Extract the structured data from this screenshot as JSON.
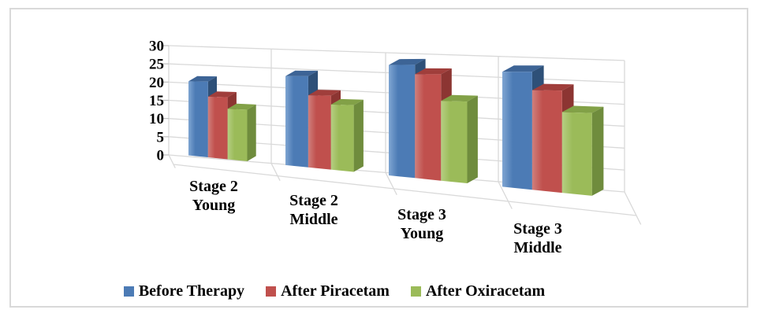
{
  "chart_data": {
    "type": "bar",
    "projection": "3d-clustered-column",
    "title": "",
    "categories": [
      {
        "line1": "Stage 2",
        "line2": "Young"
      },
      {
        "line1": "Stage 2",
        "line2": "Middle"
      },
      {
        "line1": "Stage 3",
        "line2": "Young"
      },
      {
        "line1": "Stage 3",
        "line2": "Middle"
      }
    ],
    "series": [
      {
        "name": "Before Therapy",
        "values": [
          20,
          21.5,
          24,
          22.5
        ],
        "front": "#4C7BB5",
        "front_light": "#7FA5D2",
        "top": "#3D6496",
        "side": "#2E5078"
      },
      {
        "name": "After Piracetam",
        "values": [
          16,
          17,
          22,
          19
        ],
        "front": "#C0504D",
        "front_light": "#D07F7C",
        "top": "#A03E3B",
        "side": "#8C3532"
      },
      {
        "name": "After Oxiracetam",
        "values": [
          13,
          15,
          16.5,
          15
        ],
        "front": "#9BBB59",
        "front_light": "#B5CE82",
        "top": "#82A147",
        "side": "#6F8C3D"
      }
    ],
    "yticks": [
      0,
      5,
      10,
      15,
      20,
      25,
      30
    ],
    "ylim": [
      0,
      30
    ],
    "grid": true,
    "legend_position": "bottom",
    "gridline_color": "#D9D9D9",
    "tick_color": "#BFBFBF"
  },
  "frame": {
    "border_color": "#d9d9d9",
    "background": "#ffffff"
  }
}
